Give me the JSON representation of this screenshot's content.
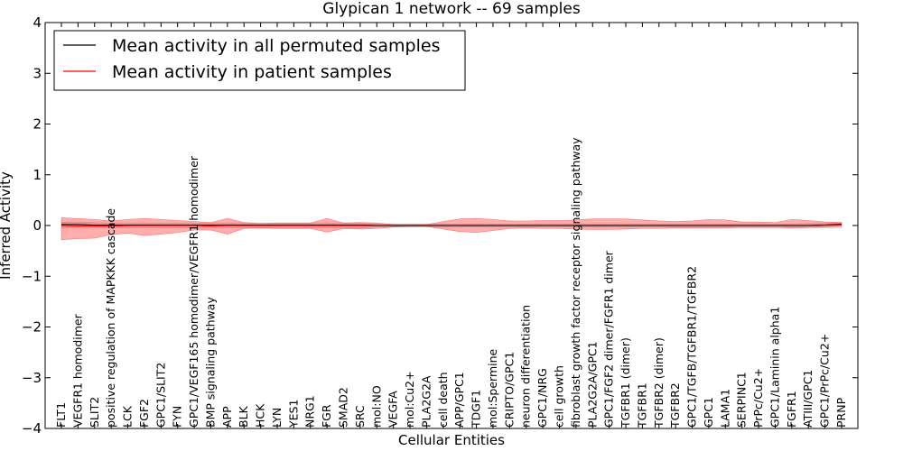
{
  "chart_data": {
    "type": "line",
    "title": "Glypican 1 network -- 69 samples",
    "xlabel": "Cellular Entities",
    "ylabel": "Inferred Activity",
    "ylim": [
      -4,
      4
    ],
    "yticks": [
      4,
      3,
      2,
      1,
      0,
      -1,
      -2,
      -3,
      -4
    ],
    "ytick_labels": [
      "4",
      "3",
      "2",
      "1",
      "0",
      "−1",
      "−2",
      "−3",
      "−4"
    ],
    "grid": false,
    "legend_position": "top-left",
    "categories": [
      "FLT1",
      "VEGFR1 homodimer",
      "SLIT2",
      "positive regulation of MAPKKK cascade",
      "LCK",
      "FGF2",
      "GPC1/SLIT2",
      "FYN",
      "GPC1/VEGF165 homodimer/VEGFR1 homodimer",
      "BMP signaling pathway",
      "APP",
      "BLK",
      "HCK",
      "LYN",
      "YES1",
      "NRG1",
      "FGR",
      "SMAD2",
      "SRC",
      "mol:NO",
      "VEGFA",
      "mol:Cu2+",
      "PLA2G2A",
      "cell death",
      "APP/GPC1",
      "TDGF1",
      "mol:Spermine",
      "CRIPTO/GPC1",
      "neuron differentiation",
      "GPC1/NRG",
      "cell growth",
      "fibroblast growth factor receptor signaling pathway",
      "PLA2G2A/GPC1",
      "GPC1/FGF2 dimer/FGFR1 dimer",
      "TGFBR1 (dimer)",
      "TGFBR1",
      "TGFBR2 (dimer)",
      "TGFBR2",
      "GPC1/TGFB/TGFBR1/TGFBR2",
      "GPC1",
      "LAMA1",
      "SERPINC1",
      "PrPc/Cu2+",
      "GPC1/Laminin alpha1",
      "FGFR1",
      "ATIII/GPC1",
      "GPC1/PrPc/Cu2+",
      "PRNP"
    ],
    "series": [
      {
        "name": "Mean activity in all permuted samples",
        "color": "#000000",
        "values": [
          0.02,
          0.02,
          0.01,
          0.01,
          0.01,
          0.01,
          0.01,
          0.01,
          0.01,
          0.01,
          0.01,
          0.01,
          0.01,
          0.01,
          0.01,
          0.01,
          0.01,
          0.01,
          0.01,
          0.0,
          0.0,
          0.0,
          0.0,
          0.0,
          0.0,
          0.0,
          0.0,
          0.0,
          0.0,
          0.0,
          0.0,
          0.0,
          0.0,
          0.0,
          0.0,
          0.0,
          0.0,
          0.0,
          0.0,
          0.0,
          0.0,
          0.0,
          0.0,
          0.0,
          0.0,
          0.0,
          0.01,
          0.02
        ],
        "band": {
          "color": "#bbbbbb",
          "upper": [
            0.07,
            0.07,
            0.06,
            0.05,
            0.05,
            0.05,
            0.05,
            0.05,
            0.05,
            0.05,
            0.05,
            0.05,
            0.05,
            0.05,
            0.05,
            0.05,
            0.05,
            0.05,
            0.05,
            0.03,
            0.03,
            0.03,
            0.03,
            0.03,
            0.03,
            0.03,
            0.03,
            0.03,
            0.03,
            0.03,
            0.03,
            0.03,
            0.03,
            0.03,
            0.03,
            0.03,
            0.03,
            0.03,
            0.03,
            0.03,
            0.03,
            0.03,
            0.03,
            0.03,
            0.03,
            0.04,
            0.05,
            0.06
          ],
          "lower": [
            -0.05,
            -0.05,
            -0.05,
            -0.05,
            -0.05,
            -0.05,
            -0.05,
            -0.05,
            -0.05,
            -0.05,
            -0.05,
            -0.05,
            -0.05,
            -0.05,
            -0.05,
            -0.05,
            -0.05,
            -0.05,
            -0.05,
            -0.03,
            -0.03,
            -0.03,
            -0.03,
            -0.03,
            -0.03,
            -0.03,
            -0.03,
            -0.03,
            -0.03,
            -0.03,
            -0.03,
            -0.03,
            -0.03,
            -0.03,
            -0.03,
            -0.03,
            -0.03,
            -0.03,
            -0.03,
            -0.03,
            -0.03,
            -0.03,
            -0.03,
            -0.03,
            -0.03,
            -0.04,
            -0.05,
            -0.05
          ]
        }
      },
      {
        "name": "Mean activity in patient samples",
        "color": "#ff0000",
        "values": [
          0.0,
          -0.01,
          -0.01,
          -0.01,
          0.0,
          0.0,
          0.0,
          0.0,
          0.0,
          -0.01,
          0.0,
          0.0,
          0.0,
          0.0,
          0.0,
          0.0,
          0.0,
          0.0,
          0.0,
          0.0,
          0.0,
          0.0,
          0.0,
          0.0,
          0.0,
          0.0,
          0.0,
          0.0,
          0.0,
          0.0,
          0.0,
          0.0,
          0.0,
          0.0,
          0.0,
          0.0,
          0.0,
          0.0,
          0.0,
          0.0,
          0.0,
          0.0,
          0.0,
          0.0,
          0.0,
          0.0,
          0.01,
          0.03
        ],
        "band": {
          "color": "#ff0000",
          "upper": [
            0.15,
            0.14,
            0.12,
            0.09,
            0.12,
            0.14,
            0.12,
            0.1,
            0.08,
            0.06,
            0.14,
            0.06,
            0.04,
            0.05,
            0.05,
            0.05,
            0.14,
            0.05,
            0.06,
            0.05,
            0.02,
            0.02,
            0.02,
            0.08,
            0.13,
            0.14,
            0.12,
            0.09,
            0.09,
            0.1,
            0.1,
            0.11,
            0.13,
            0.13,
            0.13,
            0.11,
            0.09,
            0.08,
            0.09,
            0.12,
            0.11,
            0.07,
            0.07,
            0.06,
            0.12,
            0.1,
            0.07,
            0.06
          ],
          "lower": [
            -0.28,
            -0.26,
            -0.25,
            -0.18,
            -0.15,
            -0.2,
            -0.17,
            -0.14,
            -0.09,
            -0.09,
            -0.17,
            -0.06,
            -0.05,
            -0.06,
            -0.06,
            -0.06,
            -0.13,
            -0.06,
            -0.07,
            -0.06,
            -0.03,
            -0.02,
            -0.02,
            -0.07,
            -0.12,
            -0.14,
            -0.1,
            -0.06,
            -0.05,
            -0.06,
            -0.06,
            -0.07,
            -0.08,
            -0.08,
            -0.07,
            -0.06,
            -0.06,
            -0.05,
            -0.05,
            -0.05,
            -0.05,
            -0.04,
            -0.04,
            -0.04,
            -0.05,
            -0.04,
            -0.03,
            -0.01
          ]
        }
      }
    ]
  }
}
